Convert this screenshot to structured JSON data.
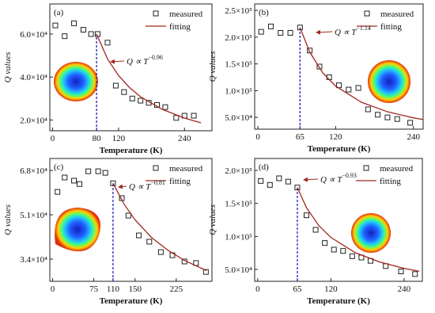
{
  "chart_data": [
    {
      "type": "line",
      "panel_label": "(a)",
      "x_label": "Temperature (K)",
      "y_label": "Q values",
      "xlim": [
        -5,
        290
      ],
      "xticks": [
        0,
        80,
        120,
        240
      ],
      "ylim": [
        15000,
        74000
      ],
      "yticks": [
        {
          "value": 20000,
          "label": "2.0×10⁴"
        },
        {
          "value": 40000,
          "label": "4.0×10⁴"
        },
        {
          "value": 60000,
          "label": "6.0×10⁴"
        }
      ],
      "vline": 80,
      "annotation": {
        "text": "Q ∝ T",
        "exponent": "−0.96"
      },
      "legend": "upper right",
      "series": [
        {
          "name": "measured",
          "style": "markers",
          "color": "#222222",
          "x": [
            5,
            22,
            39,
            56,
            70,
            82,
            100,
            115,
            130,
            145,
            160,
            175,
            190,
            205,
            225,
            240,
            257
          ],
          "values": [
            64000,
            59000,
            65000,
            62000,
            60000,
            60000,
            56000,
            36000,
            33000,
            30000,
            29000,
            28000,
            27000,
            26000,
            21000,
            22000,
            22000
          ]
        },
        {
          "name": "fitting",
          "style": "line",
          "color": "#a0281e",
          "x": [
            80,
            100,
            120,
            140,
            160,
            200,
            240,
            270
          ],
          "values": [
            60000,
            48400,
            40700,
            35100,
            30800,
            24900,
            20900,
            18700
          ]
        }
      ]
    },
    {
      "type": "line",
      "panel_label": "(b)",
      "x_label": "Temperature (K)",
      "y_label": "Q values",
      "xlim": [
        -5,
        255
      ],
      "xticks": [
        0,
        65,
        120,
        240
      ],
      "ylim": [
        28000,
        262000
      ],
      "yticks": [
        {
          "value": 50000,
          "label": "5.0×10⁴"
        },
        {
          "value": 100000,
          "label": "1.0×10⁵"
        },
        {
          "value": 150000,
          "label": "1.5×10⁵"
        },
        {
          "value": 200000,
          "label": "2.0×10⁵"
        },
        {
          "value": 250000,
          "label": "2.5×10⁵"
        }
      ],
      "vline": 65,
      "annotation": {
        "text": "Q ∝ T",
        "exponent": "−1.14"
      },
      "legend": "upper right",
      "series": [
        {
          "name": "measured",
          "style": "markers",
          "color": "#222222",
          "x": [
            5,
            20,
            35,
            50,
            65,
            80,
            95,
            110,
            125,
            140,
            155,
            170,
            185,
            200,
            215,
            235
          ],
          "values": [
            210000,
            220000,
            208000,
            208000,
            218000,
            175000,
            145000,
            125000,
            110000,
            102000,
            105000,
            65000,
            55000,
            50000,
            47000,
            40000
          ]
        },
        {
          "name": "fitting",
          "style": "line",
          "color": "#a0281e",
          "x": [
            65,
            80,
            100,
            120,
            160,
            200,
            240,
            255
          ],
          "values": [
            218000,
            172000,
            133400,
            108400,
            78100,
            60500,
            49200,
            45900
          ]
        }
      ]
    },
    {
      "type": "line",
      "panel_label": "(c)",
      "x_label": "Temperature (K)",
      "y_label": "Q values",
      "xlim": [
        -5,
        290
      ],
      "xticks": [
        0,
        75,
        110,
        150,
        225
      ],
      "ylim": [
        25500,
        72600
      ],
      "yticks": [
        {
          "value": 34000,
          "label": "3.4×10⁴"
        },
        {
          "value": 51000,
          "label": "5.1×10⁴"
        },
        {
          "value": 68000,
          "label": "6.8×10⁴"
        }
      ],
      "vline": 110,
      "annotation": {
        "text": "Q ∝ T",
        "exponent": "−0.81"
      },
      "legend": "upper right",
      "series": [
        {
          "name": "measured",
          "style": "markers",
          "color": "#222222",
          "x": [
            9,
            22,
            39,
            49,
            65,
            83,
            96,
            110,
            126,
            138,
            157,
            176,
            197,
            218,
            240,
            261,
            279
          ],
          "values": [
            59800,
            65300,
            64100,
            62800,
            67700,
            67700,
            67100,
            63100,
            57400,
            50700,
            43100,
            40700,
            36700,
            35500,
            33100,
            32500,
            29100
          ]
        },
        {
          "name": "fitting",
          "style": "line",
          "color": "#a0281e",
          "x": [
            110,
            130,
            150,
            180,
            210,
            240,
            280
          ],
          "values": [
            63100,
            55100,
            49100,
            42300,
            37400,
            33500,
            29600
          ]
        }
      ]
    },
    {
      "type": "line",
      "panel_label": "(d)",
      "x_label": "Temperature (K)",
      "y_label": "Q values",
      "xlim": [
        -5,
        270
      ],
      "xticks": [
        0,
        65,
        120,
        240
      ],
      "ylim": [
        32000,
        218000
      ],
      "yticks": [
        {
          "value": 50000,
          "label": "5.0×10⁴"
        },
        {
          "value": 100000,
          "label": "1.0×10⁵"
        },
        {
          "value": 150000,
          "label": "1.5×10⁵"
        },
        {
          "value": 200000,
          "label": "2.0×10⁵"
        }
      ],
      "vline": 65,
      "annotation": {
        "text": "Q ∝ T",
        "exponent": "−0.93"
      },
      "legend": "upper right",
      "series": [
        {
          "name": "measured",
          "style": "markers",
          "color": "#222222",
          "x": [
            5,
            20,
            35,
            50,
            65,
            80,
            95,
            110,
            125,
            140,
            155,
            170,
            185,
            210,
            235,
            258
          ],
          "values": [
            184000,
            178000,
            188000,
            183000,
            174000,
            132000,
            110000,
            90000,
            80000,
            78000,
            70000,
            68000,
            63000,
            55000,
            47000,
            43000
          ]
        },
        {
          "name": "fitting",
          "style": "line",
          "color": "#a0281e",
          "x": [
            65,
            80,
            100,
            120,
            160,
            200,
            240,
            265
          ],
          "values": [
            174000,
            143400,
            116600,
            98400,
            75300,
            61200,
            51600,
            47100
          ]
        }
      ]
    }
  ]
}
